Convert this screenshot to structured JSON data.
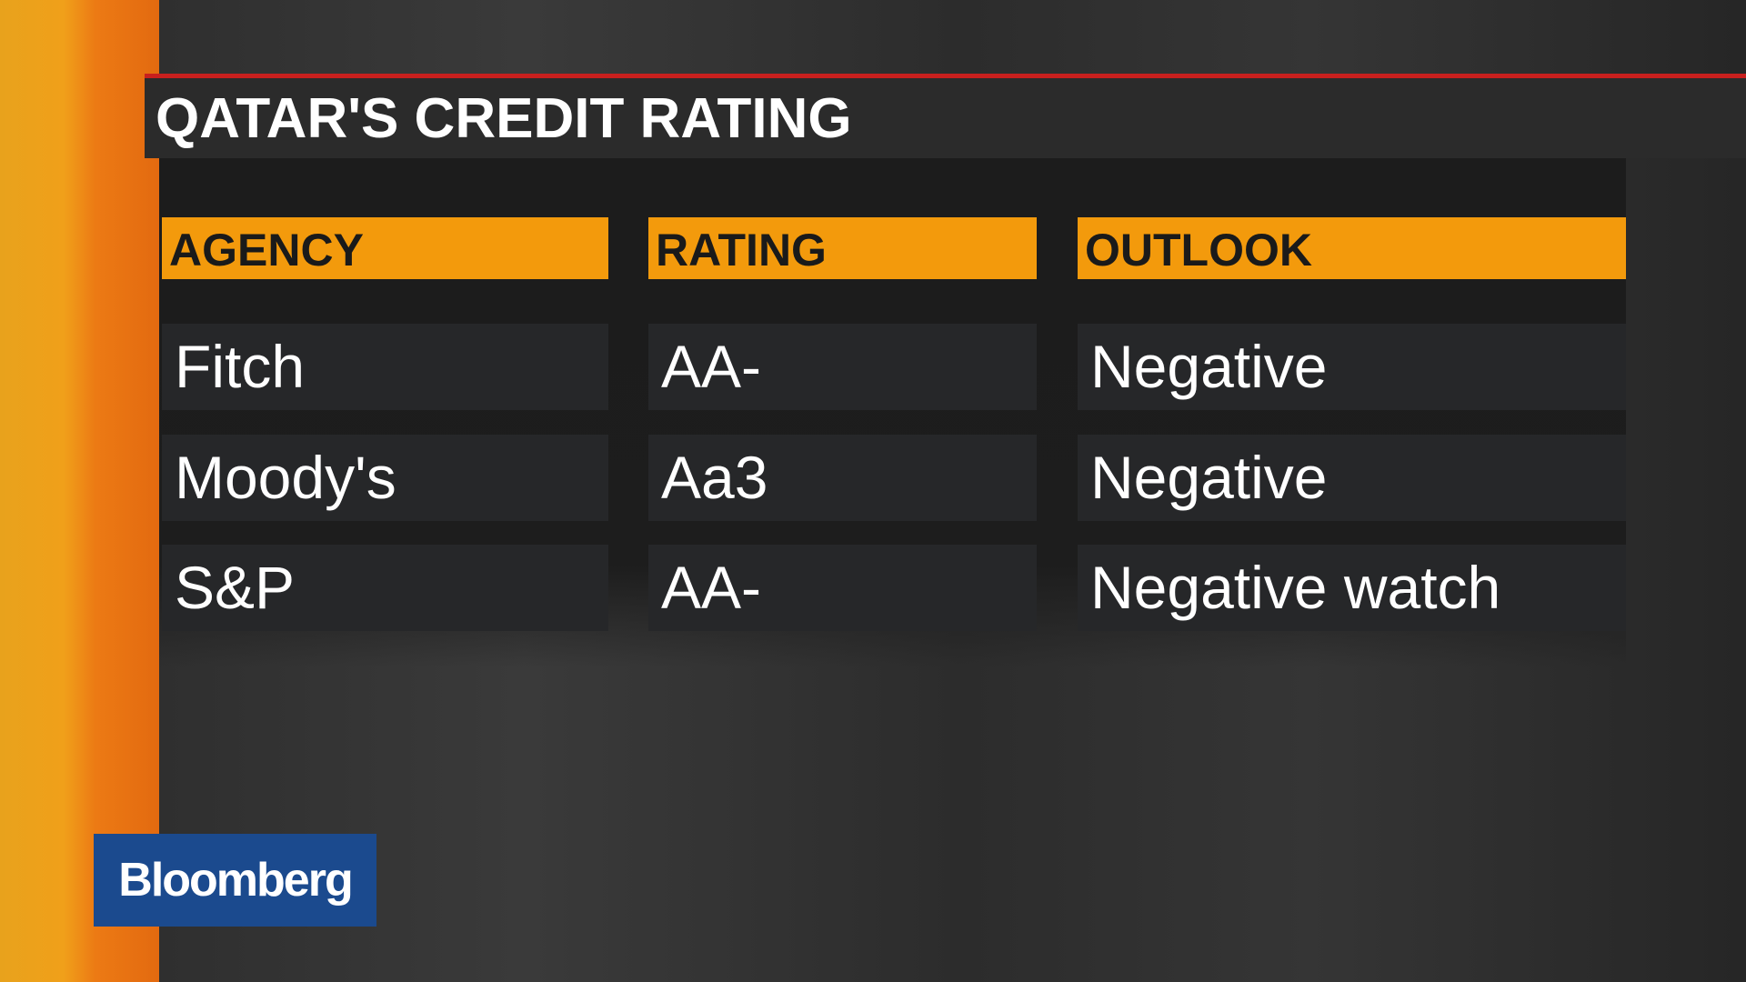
{
  "header": {
    "title": "QATAR'S CREDIT RATING"
  },
  "table": {
    "columns": [
      "AGENCY",
      "RATING",
      "OUTLOOK"
    ],
    "rows": [
      [
        "Fitch",
        "AA-",
        "Negative"
      ],
      [
        "Moody's",
        "Aa3",
        "Negative"
      ],
      [
        "S&P",
        "AA-",
        "Negative watch"
      ]
    ]
  },
  "logo": {
    "text": "Bloomberg"
  }
}
